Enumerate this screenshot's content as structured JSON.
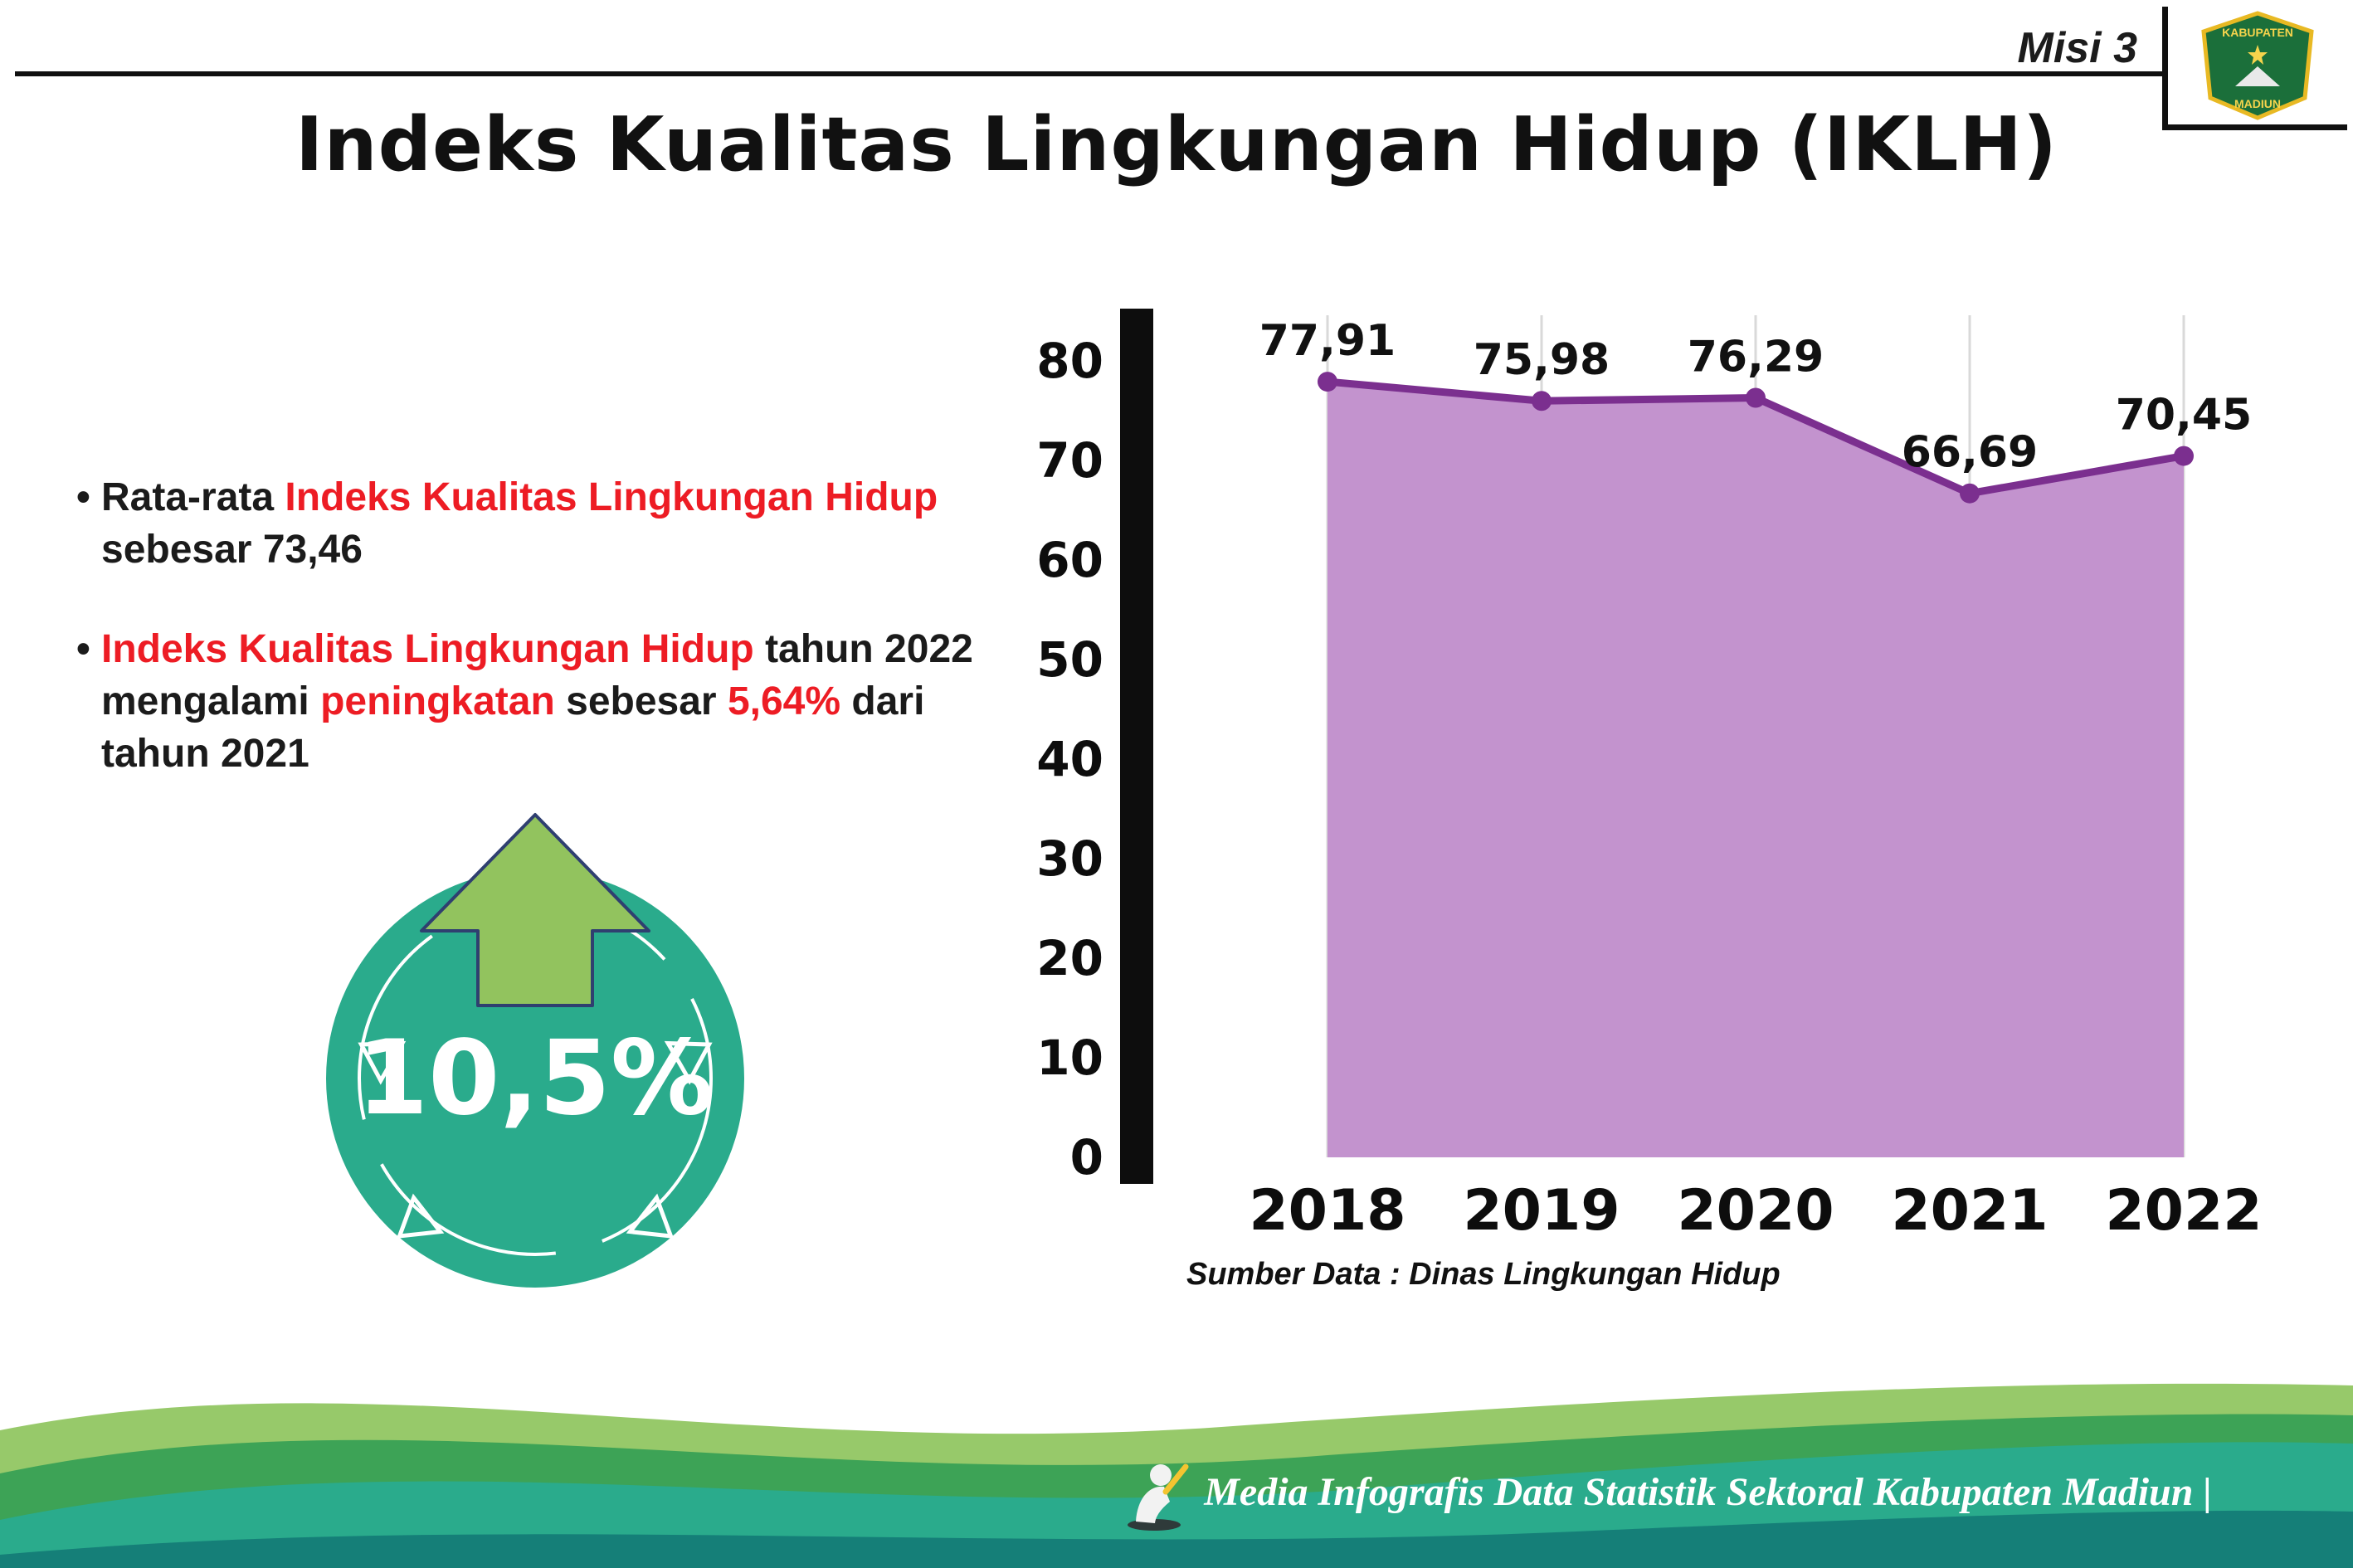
{
  "page": {
    "misi_label": "Misi 3",
    "title": "Indeks Kualitas Lingkungan Hidup (IKLH)"
  },
  "logo": {
    "top_text": "KABUPATEN",
    "bottom_text": "MADIUN"
  },
  "bullets": {
    "b1_pre": "Rata-rata ",
    "b1_red": "Indeks Kualitas Lingkungan Hidup",
    "b1_line2": "sebesar 73,46",
    "b2_red1": "Indeks Kualitas Lingkungan Hidup",
    "b2_post1": " tahun 2022",
    "b2_l2_pre": "mengalami ",
    "b2_l2_red": "peningkatan",
    "b2_l2_mid": " sebesar ",
    "b2_l2_red2": "5,64%",
    "b2_l2_post": " dari",
    "b2_line3": "tahun 2021"
  },
  "badge": {
    "value": "10,5%",
    "circle_color": "#2aab8c",
    "arrow_color": "#92c35e"
  },
  "chart_data": {
    "type": "area",
    "title": "Indeks Kualitas Lingkungan Hidup (IKLH)",
    "categories": [
      "2018",
      "2019",
      "2020",
      "2021",
      "2022"
    ],
    "values": [
      77.91,
      75.98,
      76.29,
      66.69,
      70.45
    ],
    "value_labels": [
      "77,91",
      "75,98",
      "76,29",
      "66,69",
      "70,45"
    ],
    "xlabel": "",
    "ylabel": "",
    "ylim": [
      0,
      80
    ],
    "yticks": [
      0,
      10,
      20,
      30,
      40,
      50,
      60,
      70,
      80
    ],
    "grid": "vertical",
    "legend": "none",
    "fill_color": "#c393ce",
    "line_color": "#7b2f8f",
    "source": "Sumber Data : Dinas Lingkungan Hidup"
  },
  "footer": {
    "text": "Media Infografis Data Statistik Sektoral Kabupaten Madiun |"
  },
  "colors": {
    "accent_red": "#ED1C24",
    "teal": "#2aab8c",
    "arrow_green": "#92c35e",
    "area_purple": "#c393ce",
    "line_purple": "#7b2f8f",
    "footer_light_green": "#97c96a",
    "footer_green": "#3da356",
    "footer_teal": "#2aab8c",
    "footer_deep_teal": "#157f78"
  }
}
